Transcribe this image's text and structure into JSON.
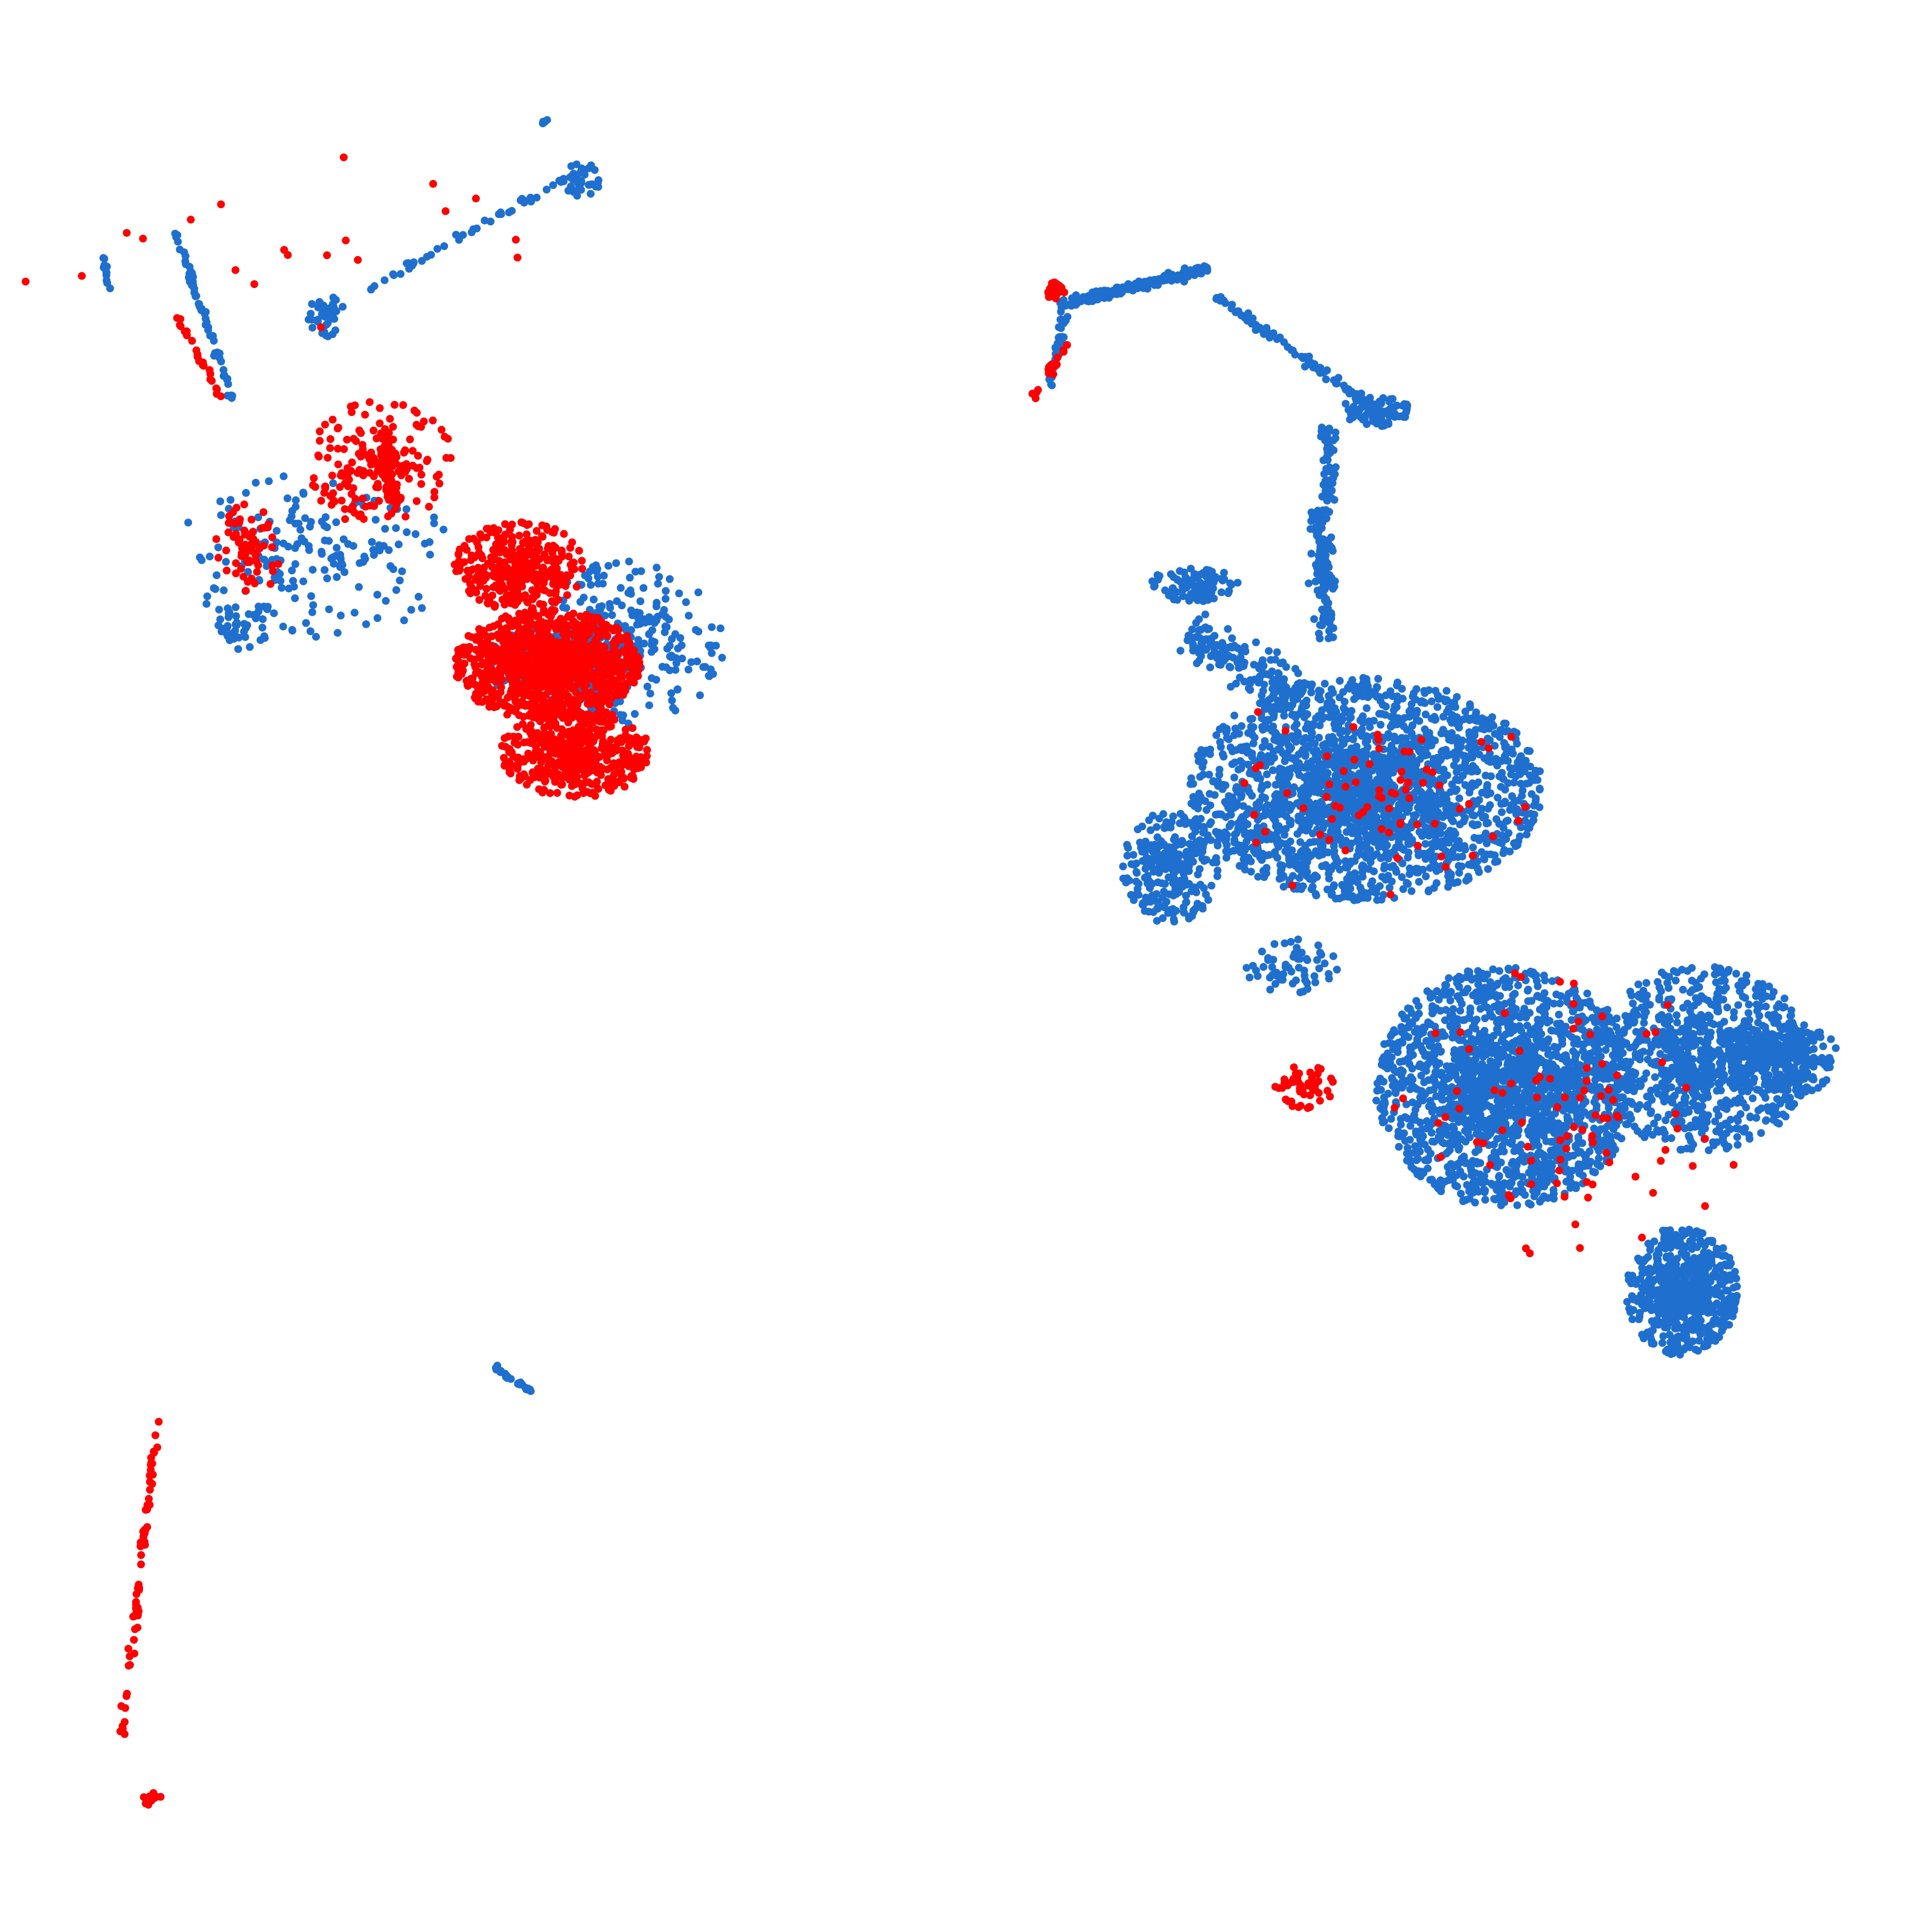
{
  "chart_data": {
    "type": "scatter",
    "title": "",
    "xlabel": "",
    "ylabel": "",
    "axes_visible": false,
    "grid": false,
    "legend": "none",
    "xlim": [
      0,
      100
    ],
    "ylim": [
      0,
      100
    ],
    "series": [
      {
        "color": "#1f6fcf",
        "clusters": [
          {
            "cx": 27.5,
            "cy": 66.2,
            "rx": 3.4,
            "ry": 1.9,
            "count": 120,
            "shape": "ellipse"
          },
          {
            "cx": 31.5,
            "cy": 67.4,
            "rx": 5.5,
            "ry": 4.5,
            "count": 260,
            "shape": "ellipse"
          },
          {
            "cx": 10.8,
            "cy": 68.2,
            "rx": 1.7,
            "ry": 1.2,
            "count": 40,
            "shape": "ellipse"
          },
          {
            "cx": 15.0,
            "cy": 72.0,
            "rx": 7.5,
            "ry": 4.5,
            "count": 180,
            "shape": "ellipse"
          },
          {
            "x0": 7.5,
            "y0": 89.5,
            "x1": 10.5,
            "y1": 80.5,
            "width": 0.3,
            "count": 60,
            "shape": "line"
          },
          {
            "x0": 24.5,
            "y0": 28.5,
            "x1": 26.8,
            "y1": 27.0,
            "width": 0.3,
            "count": 25,
            "shape": "line"
          },
          {
            "x0": 3.9,
            "y0": 86.3,
            "x1": 3.6,
            "y1": 88.2,
            "width": 0.2,
            "count": 12,
            "shape": "line"
          },
          {
            "x0": 14.5,
            "y0": 84.5,
            "x1": 29.5,
            "y1": 93.0,
            "width": 0.5,
            "count": 60,
            "shape": "line"
          },
          {
            "cx": 15.5,
            "cy": 85.0,
            "rx": 0.9,
            "ry": 1.2,
            "count": 30,
            "shape": "ellipse"
          },
          {
            "cx": 29.3,
            "cy": 92.3,
            "rx": 1.2,
            "ry": 0.9,
            "count": 35,
            "shape": "ellipse"
          },
          {
            "cx": 27.3,
            "cy": 95.4,
            "rx": 0.2,
            "ry": 0.2,
            "count": 4,
            "shape": "ellipse"
          },
          {
            "cx": 71.5,
            "cy": 59.5,
            "rx": 9.5,
            "ry": 6.0,
            "count": 2200,
            "shape": "ellipse"
          },
          {
            "cx": 61.0,
            "cy": 55.3,
            "rx": 2.6,
            "ry": 3.0,
            "count": 260,
            "shape": "ellipse"
          },
          {
            "cx": 79.0,
            "cy": 43.5,
            "rx": 7.0,
            "ry": 6.5,
            "count": 1900,
            "shape": "ellipse"
          },
          {
            "cx": 89.5,
            "cy": 45.0,
            "rx": 6.0,
            "ry": 5.0,
            "count": 900,
            "shape": "ellipse"
          },
          {
            "cx": 94.0,
            "cy": 45.0,
            "rx": 3.0,
            "ry": 2.0,
            "count": 250,
            "shape": "ellipse"
          },
          {
            "cx": 88.5,
            "cy": 32.5,
            "rx": 3.0,
            "ry": 3.5,
            "count": 650,
            "shape": "ellipse"
          },
          {
            "cx": 67.5,
            "cy": 50.0,
            "rx": 2.5,
            "ry": 1.5,
            "count": 60,
            "shape": "ellipse"
          },
          {
            "cx": 62.3,
            "cy": 70.5,
            "rx": 2.5,
            "ry": 0.9,
            "count": 100,
            "shape": "ellipse"
          },
          {
            "x0": 62.0,
            "y0": 68.0,
            "x1": 68.0,
            "y1": 64.5,
            "width": 2.5,
            "count": 160,
            "shape": "line"
          },
          {
            "x0": 69.0,
            "y0": 74.5,
            "x1": 69.5,
            "y1": 67.5,
            "width": 1.2,
            "count": 130,
            "shape": "line"
          },
          {
            "x0": 55.0,
            "y0": 85.5,
            "x1": 63.0,
            "y1": 87.5,
            "width": 0.6,
            "count": 170,
            "shape": "line"
          },
          {
            "x0": 54.5,
            "y0": 81.2,
            "x1": 55.3,
            "y1": 85.0,
            "width": 0.5,
            "count": 40,
            "shape": "line"
          },
          {
            "x0": 63.5,
            "y0": 86.0,
            "x1": 71.5,
            "y1": 80.3,
            "width": 0.5,
            "count": 90,
            "shape": "line"
          },
          {
            "cx": 72.0,
            "cy": 79.8,
            "rx": 2.0,
            "ry": 0.8,
            "count": 90,
            "shape": "ellipse"
          },
          {
            "x0": 69.5,
            "y0": 79.0,
            "x1": 69.5,
            "y1": 75.0,
            "width": 0.8,
            "count": 50,
            "shape": "line"
          }
        ]
      },
      {
        "color": "#ff0000",
        "clusters": [
          {
            "cx": 26.0,
            "cy": 71.5,
            "rx": 3.5,
            "ry": 2.4,
            "count": 320,
            "shape": "ellipse"
          },
          {
            "cx": 27.5,
            "cy": 66.2,
            "rx": 5.0,
            "ry": 3.0,
            "count": 1100,
            "shape": "ellipse"
          },
          {
            "cx": 29.0,
            "cy": 61.5,
            "rx": 4.0,
            "ry": 2.5,
            "count": 500,
            "shape": "ellipse"
          },
          {
            "cx": 18.5,
            "cy": 77.0,
            "rx": 4.0,
            "ry": 3.5,
            "count": 190,
            "shape": "ellipse"
          },
          {
            "cx": 11.5,
            "cy": 72.5,
            "rx": 2.0,
            "ry": 2.5,
            "count": 70,
            "shape": "ellipse"
          },
          {
            "x0": 18.7,
            "y0": 79.0,
            "x1": 19.2,
            "y1": 75.0,
            "width": 0.7,
            "count": 70,
            "shape": "line"
          },
          {
            "x0": 7.5,
            "y0": 85.0,
            "x1": 10.0,
            "y1": 80.5,
            "width": 0.3,
            "count": 25,
            "shape": "line"
          },
          {
            "x0": 6.5,
            "y0": 25.5,
            "x1": 4.6,
            "y1": 8.5,
            "width": 0.3,
            "count": 65,
            "shape": "line"
          },
          {
            "cx": 6.3,
            "cy": 5.2,
            "rx": 0.6,
            "ry": 0.4,
            "count": 10,
            "shape": "ellipse"
          },
          {
            "cx": 54.8,
            "cy": 86.3,
            "rx": 0.5,
            "ry": 0.5,
            "count": 30,
            "shape": "ellipse"
          },
          {
            "x0": 53.5,
            "y0": 80.5,
            "x1": 55.5,
            "y1": 83.5,
            "width": 0.4,
            "count": 20,
            "shape": "line"
          },
          {
            "cx": 68.3,
            "cy": 43.5,
            "rx": 1.7,
            "ry": 1.2,
            "count": 55,
            "shape": "ellipse"
          },
          {
            "cx": 71.5,
            "cy": 59.5,
            "rx": 9.0,
            "ry": 6.0,
            "count": 70,
            "shape": "ellipse"
          },
          {
            "cx": 82.0,
            "cy": 42.0,
            "rx": 10.0,
            "ry": 8.0,
            "count": 90,
            "shape": "ellipse"
          },
          {
            "cx": 12.5,
            "cy": 89.0,
            "rx": 16.0,
            "ry": 5.0,
            "count": 20,
            "shape": "ellipse"
          }
        ]
      }
    ]
  }
}
